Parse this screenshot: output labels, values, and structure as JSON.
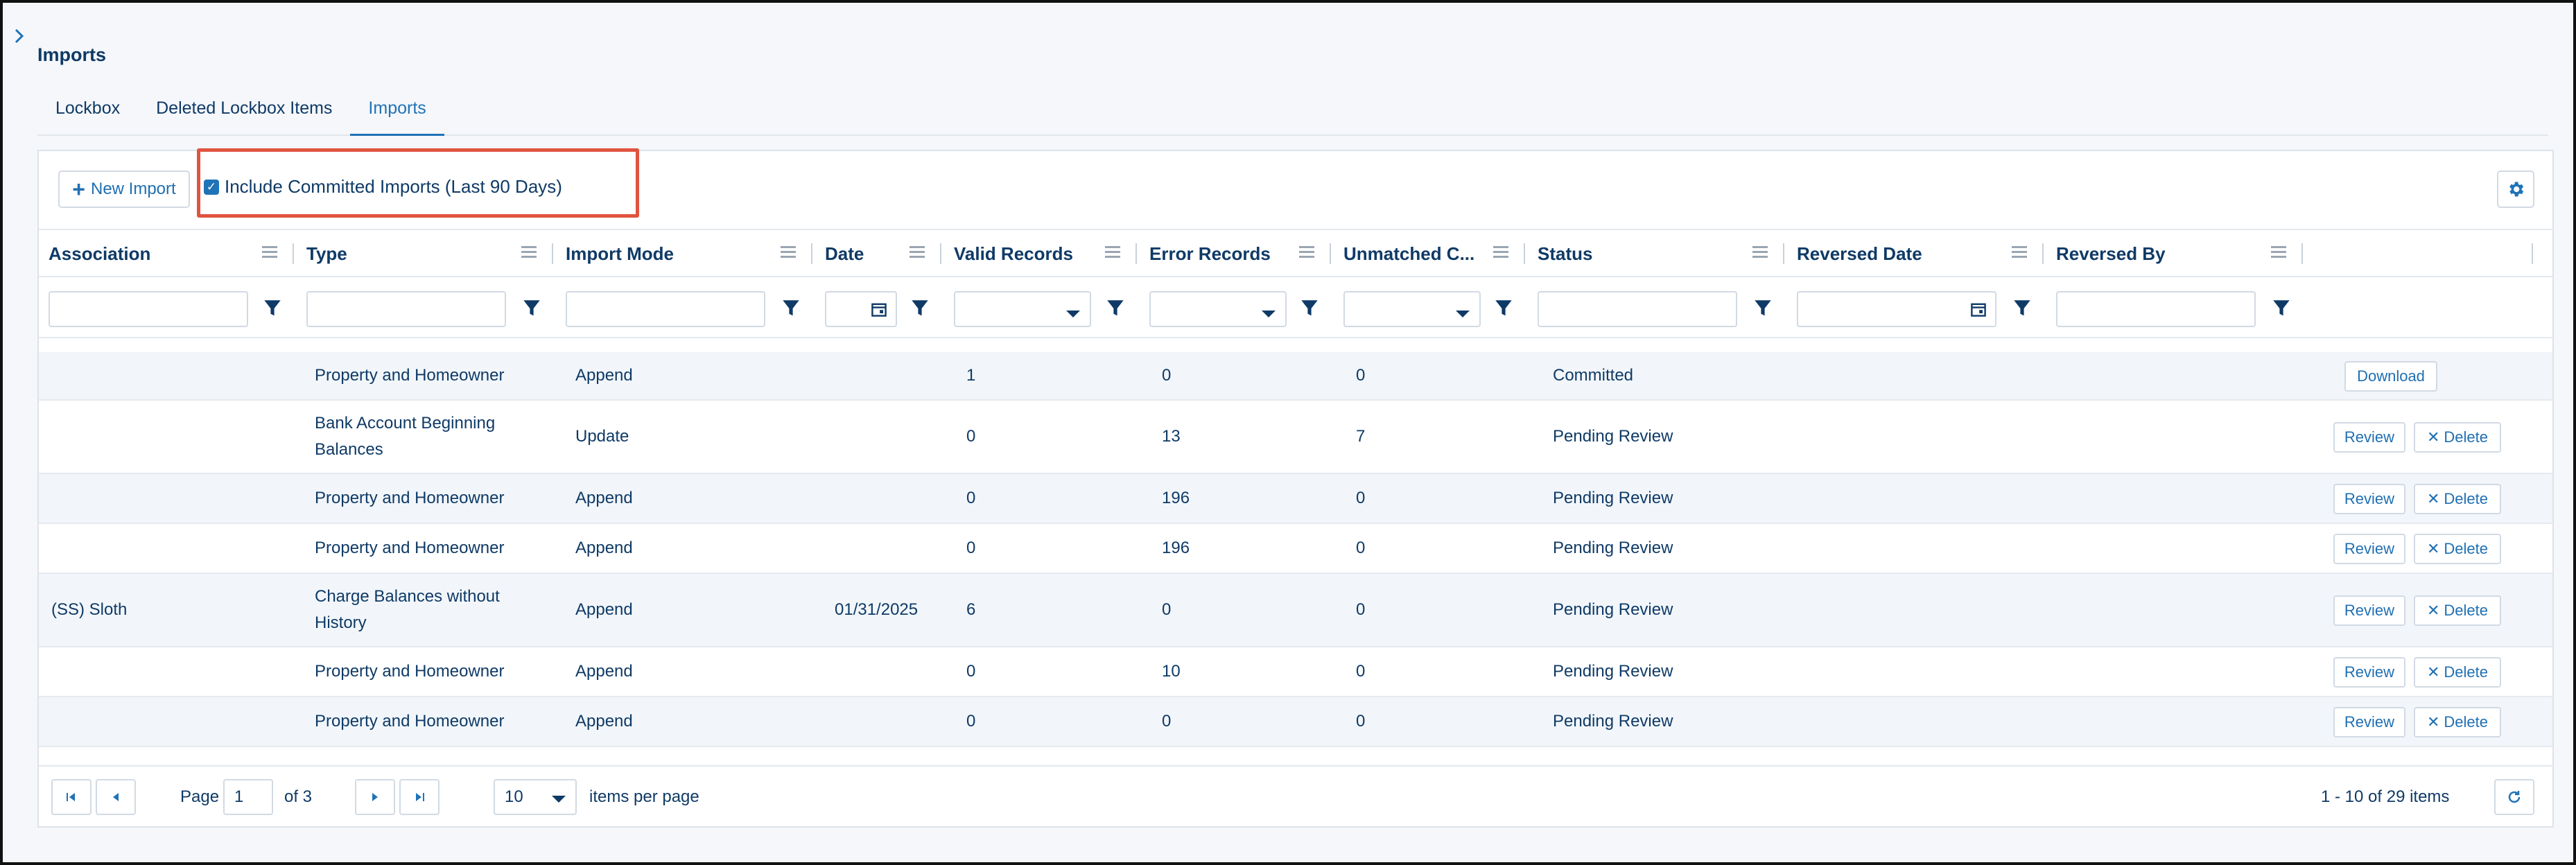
{
  "page_title": "Imports",
  "tabs": [
    {
      "label": "Lockbox",
      "active": false
    },
    {
      "label": "Deleted Lockbox Items",
      "active": false
    },
    {
      "label": "Imports",
      "active": true
    }
  ],
  "toolbar": {
    "new_import_label": "New Import",
    "include_committed_label": "Include Committed Imports (Last 90 Days)",
    "include_committed_checked": true
  },
  "columns": [
    "Association",
    "Type",
    "Import Mode",
    "Date",
    "Valid Records",
    "Error Records",
    "Unmatched C...",
    "Status",
    "Reversed Date",
    "Reversed By"
  ],
  "rows": [
    {
      "association": "",
      "type": "Property and Homeowner",
      "import_mode": "Append",
      "date": "",
      "valid": "1",
      "error": "0",
      "unmatched": "0",
      "status": "Committed",
      "actions": [
        "Download"
      ]
    },
    {
      "association": "",
      "type": "Bank Account Beginning Balances",
      "import_mode": "Update",
      "date": "",
      "valid": "0",
      "error": "13",
      "unmatched": "7",
      "status": "Pending Review",
      "actions": [
        "Review",
        "Delete"
      ]
    },
    {
      "association": "",
      "type": "Property and Homeowner",
      "import_mode": "Append",
      "date": "",
      "valid": "0",
      "error": "196",
      "unmatched": "0",
      "status": "Pending Review",
      "actions": [
        "Review",
        "Delete"
      ]
    },
    {
      "association": "",
      "type": "Property and Homeowner",
      "import_mode": "Append",
      "date": "",
      "valid": "0",
      "error": "196",
      "unmatched": "0",
      "status": "Pending Review",
      "actions": [
        "Review",
        "Delete"
      ]
    },
    {
      "association": "(SS) Sloth",
      "type": "Charge Balances without History",
      "import_mode": "Append",
      "date": "01/31/2025",
      "valid": "6",
      "error": "0",
      "unmatched": "0",
      "status": "Pending Review",
      "actions": [
        "Review",
        "Delete"
      ]
    },
    {
      "association": "",
      "type": "Property and Homeowner",
      "import_mode": "Append",
      "date": "",
      "valid": "0",
      "error": "10",
      "unmatched": "0",
      "status": "Pending Review",
      "actions": [
        "Review",
        "Delete"
      ]
    },
    {
      "association": "",
      "type": "Property and Homeowner",
      "import_mode": "Append",
      "date": "",
      "valid": "0",
      "error": "0",
      "unmatched": "0",
      "status": "Pending Review",
      "actions": [
        "Review",
        "Delete"
      ]
    }
  ],
  "pager": {
    "page_label": "Page",
    "page_value": "1",
    "of_label": "of 3",
    "page_size": "10",
    "per_page_label": "items per page",
    "summary": "1 - 10 of 29 items"
  },
  "colors": {
    "accent": "#1f73b7",
    "text": "#0f3a66",
    "highlight": "#e0533f",
    "alt_row": "#f2f6fa"
  }
}
